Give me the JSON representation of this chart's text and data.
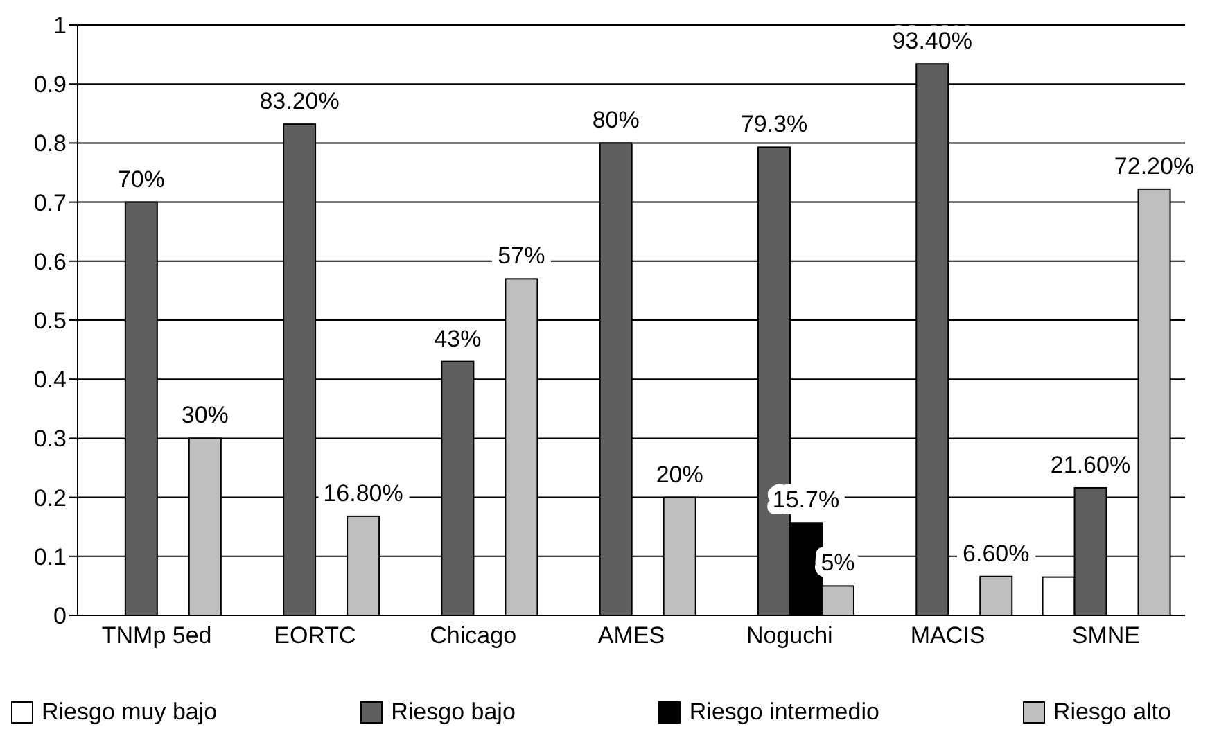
{
  "chart_data": {
    "type": "bar",
    "categories": [
      "TNMp 5ed",
      "EORTC",
      "Chicago",
      "AMES",
      "Noguchi",
      "MACIS",
      "SMNE"
    ],
    "series": [
      {
        "name": "Riesgo muy bajo",
        "color": "#ffffff",
        "values": [
          null,
          null,
          null,
          null,
          null,
          null,
          0.065
        ]
      },
      {
        "name": "Riesgo bajo",
        "color": "#5f5f5f",
        "values": [
          0.7,
          0.832,
          0.43,
          0.8,
          0.793,
          0.934,
          0.216
        ],
        "value_labels": [
          "70%",
          "83.20%",
          "43%",
          "80%",
          "79.3%",
          "93.40%",
          "21.60%"
        ]
      },
      {
        "name": "Riesgo intermedio",
        "color": "#000000",
        "values": [
          null,
          null,
          null,
          null,
          0.157,
          null,
          null
        ],
        "value_labels": [
          null,
          null,
          null,
          null,
          "15.7%",
          null,
          null
        ]
      },
      {
        "name": "Riesgo alto",
        "color": "#c0c0c0",
        "values": [
          0.3,
          0.168,
          0.57,
          0.2,
          0.05,
          0.066,
          0.722
        ],
        "value_labels": [
          "30%",
          "16.80%",
          "57%",
          "20%",
          "5%",
          "6.60%",
          "72.20%"
        ]
      }
    ],
    "ylim": [
      0,
      1
    ],
    "yticks": [
      0,
      0.1,
      0.2,
      0.3,
      0.4,
      0.5,
      0.6,
      0.7,
      0.8,
      0.9,
      1
    ],
    "grid": "y",
    "legend": "bottom"
  }
}
